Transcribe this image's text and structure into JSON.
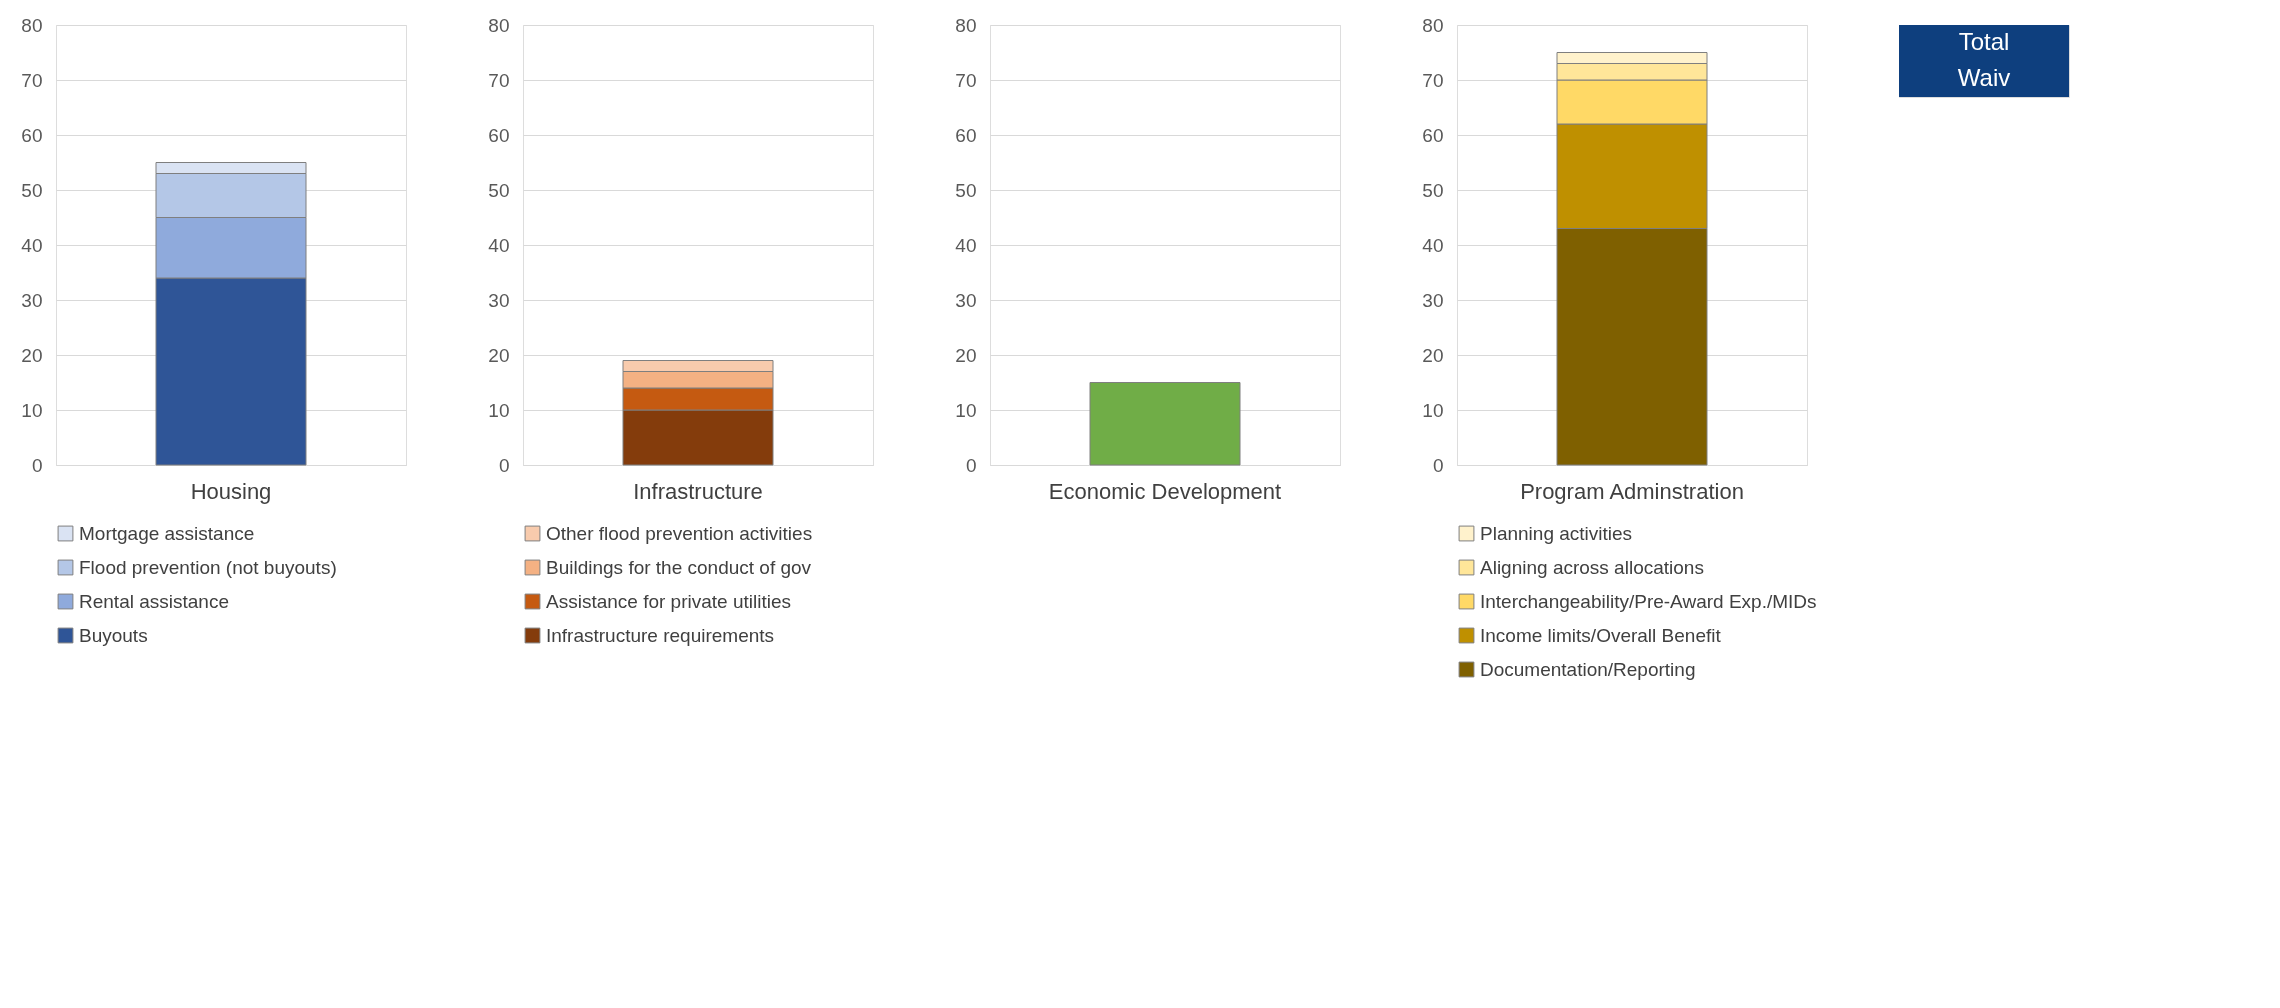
{
  "chart_data": [
    {
      "type": "bar",
      "stacked": true,
      "categories": [
        "Housing"
      ],
      "ylim": [
        0,
        80
      ],
      "yticks": [
        0,
        10,
        20,
        30,
        40,
        50,
        60,
        70,
        80
      ],
      "grid": "y",
      "legend": "bottom",
      "series": [
        {
          "name": "Buyouts",
          "color": "#2f5597",
          "values": [
            34
          ]
        },
        {
          "name": "Rental assistance",
          "color": "#8faadc",
          "values": [
            11
          ]
        },
        {
          "name": "Flood prevention (not buyouts)",
          "color": "#b4c7e7",
          "values": [
            8
          ]
        },
        {
          "name": "Mortgage assistance",
          "color": "#dae3f3",
          "values": [
            2
          ]
        }
      ]
    },
    {
      "type": "bar",
      "stacked": true,
      "categories": [
        "Infrastructure"
      ],
      "ylim": [
        0,
        80
      ],
      "yticks": [
        0,
        10,
        20,
        30,
        40,
        50,
        60,
        70,
        80
      ],
      "grid": "y",
      "legend": "bottom",
      "series": [
        {
          "name": "Infrastructure requirements",
          "color": "#843c0c",
          "values": [
            10
          ]
        },
        {
          "name": "Assistance for private utilities",
          "color": "#c55a11",
          "values": [
            4
          ]
        },
        {
          "name": "Buildings for the conduct of gov",
          "color": "#f4b183",
          "values": [
            3
          ]
        },
        {
          "name": "Other flood prevention activities",
          "color": "#f8cbad",
          "values": [
            2
          ]
        }
      ]
    },
    {
      "type": "bar",
      "stacked": true,
      "categories": [
        "Economic Development"
      ],
      "ylim": [
        0,
        80
      ],
      "yticks": [
        0,
        10,
        20,
        30,
        40,
        50,
        60,
        70,
        80
      ],
      "grid": "y",
      "series": [
        {
          "color": "#70ad47",
          "values": [
            15
          ]
        }
      ]
    },
    {
      "type": "bar",
      "stacked": true,
      "categories": [
        "Program Adminstration"
      ],
      "ylim": [
        0,
        80
      ],
      "yticks": [
        0,
        10,
        20,
        30,
        40,
        50,
        60,
        70,
        80
      ],
      "grid": "y",
      "legend": "bottom",
      "annotations": [
        "Total",
        "Waiv"
      ],
      "series": [
        {
          "name": "Documentation/Reporting",
          "color": "#7f6000",
          "values": [
            43
          ]
        },
        {
          "name": "Income limits/Overall Benefit",
          "color": "#bf9000",
          "values": [
            19
          ]
        },
        {
          "name": "Interchangeability/Pre-Award Exp./MIDs",
          "color": "#ffd966",
          "values": [
            8
          ]
        },
        {
          "name": "Aligning across allocations",
          "color": "#ffe699",
          "values": [
            3
          ]
        },
        {
          "name": "Planning activities",
          "color": "#fff2cc",
          "values": [
            2
          ]
        }
      ]
    }
  ]
}
